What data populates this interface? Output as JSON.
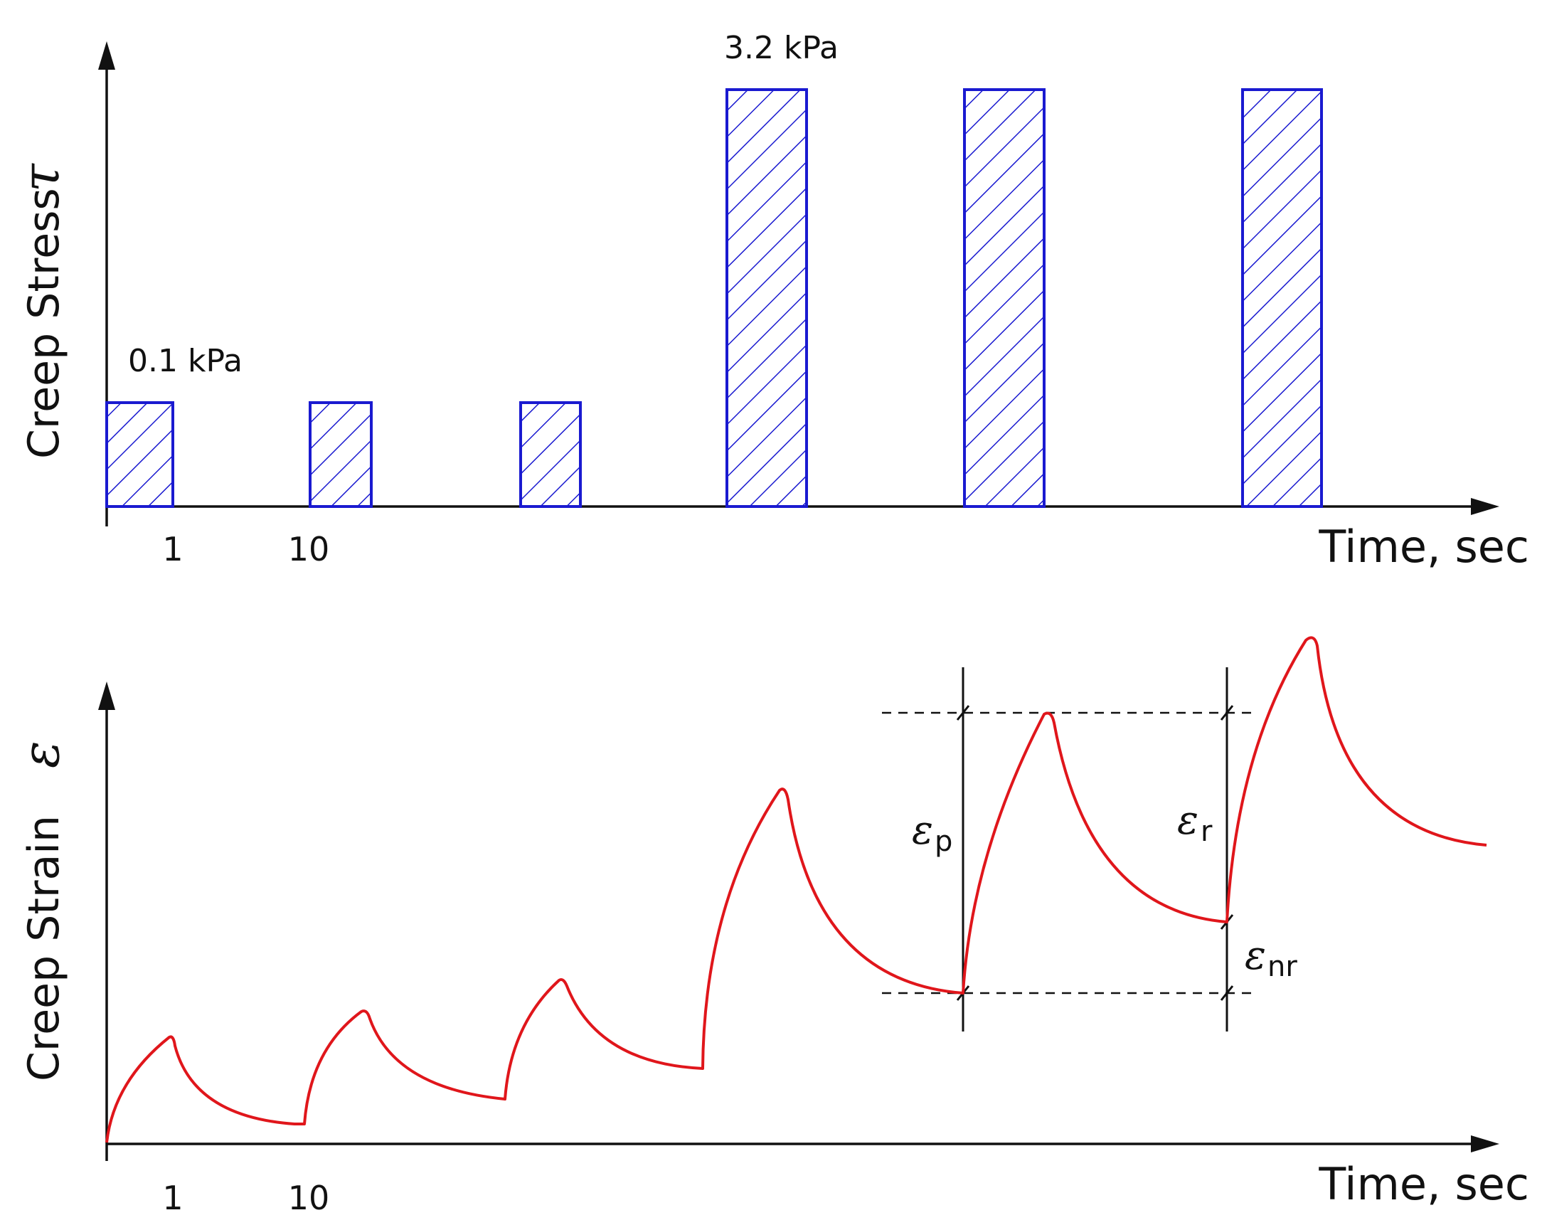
{
  "top_chart": {
    "ylabel": "Creep Stress",
    "ysymbol": "τ",
    "xlabel": "Time, sec",
    "x_ticks": [
      "1",
      "10"
    ],
    "low_stress_label": "0.1 kPa",
    "high_stress_label": "3.2 kPa",
    "pulse_color": "#1a1ad0",
    "pulses": [
      {
        "stress_kpa": 0.1
      },
      {
        "stress_kpa": 0.1
      },
      {
        "stress_kpa": 0.1
      },
      {
        "stress_kpa": 3.2
      },
      {
        "stress_kpa": 3.2
      },
      {
        "stress_kpa": 3.2
      }
    ]
  },
  "bottom_chart": {
    "ylabel": "Creep Strain",
    "ysymbol": "ε",
    "xlabel": "Time, sec",
    "x_ticks": [
      "1",
      "10"
    ],
    "curve_color": "#e0161b",
    "eps_p": {
      "symbol": "ε",
      "sub": "p"
    },
    "eps_r": {
      "symbol": "ε",
      "sub": "r"
    },
    "eps_nr": {
      "symbol": "ε",
      "sub": "nr"
    }
  }
}
